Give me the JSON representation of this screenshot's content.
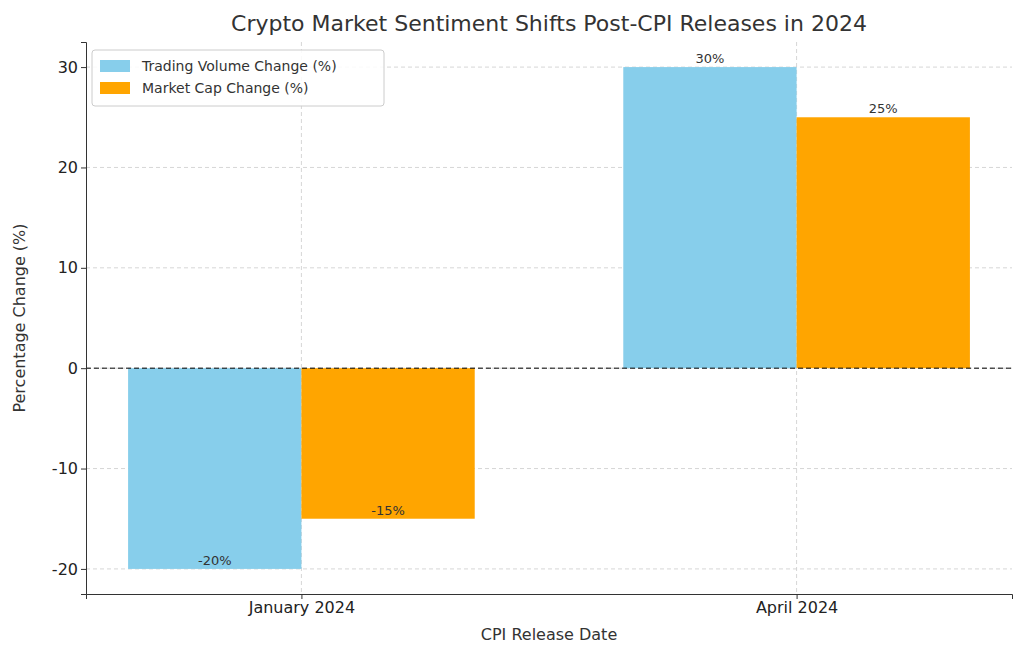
{
  "chart_data": {
    "type": "bar",
    "title": "Crypto Market Sentiment Shifts Post-CPI Releases in 2024",
    "x_label": "CPI Release Date",
    "y_label": "Percentage Change (%)",
    "categories": [
      "January 2024",
      "April 2024"
    ],
    "series": [
      {
        "name": "Trading Volume Change (%)",
        "color": "#87ceeb",
        "values": [
          -20,
          30
        ],
        "value_labels": [
          "-20%",
          "30%"
        ]
      },
      {
        "name": "Market Cap Change (%)",
        "color": "#ffa500",
        "values": [
          -15,
          25
        ],
        "value_labels": [
          "-15%",
          "25%"
        ]
      }
    ],
    "ylim": [
      -22.5,
      32.5
    ],
    "yticks": [
      -20,
      -10,
      0,
      10,
      20,
      30
    ],
    "grid": true,
    "legend": "upper left",
    "data_labels": true
  }
}
